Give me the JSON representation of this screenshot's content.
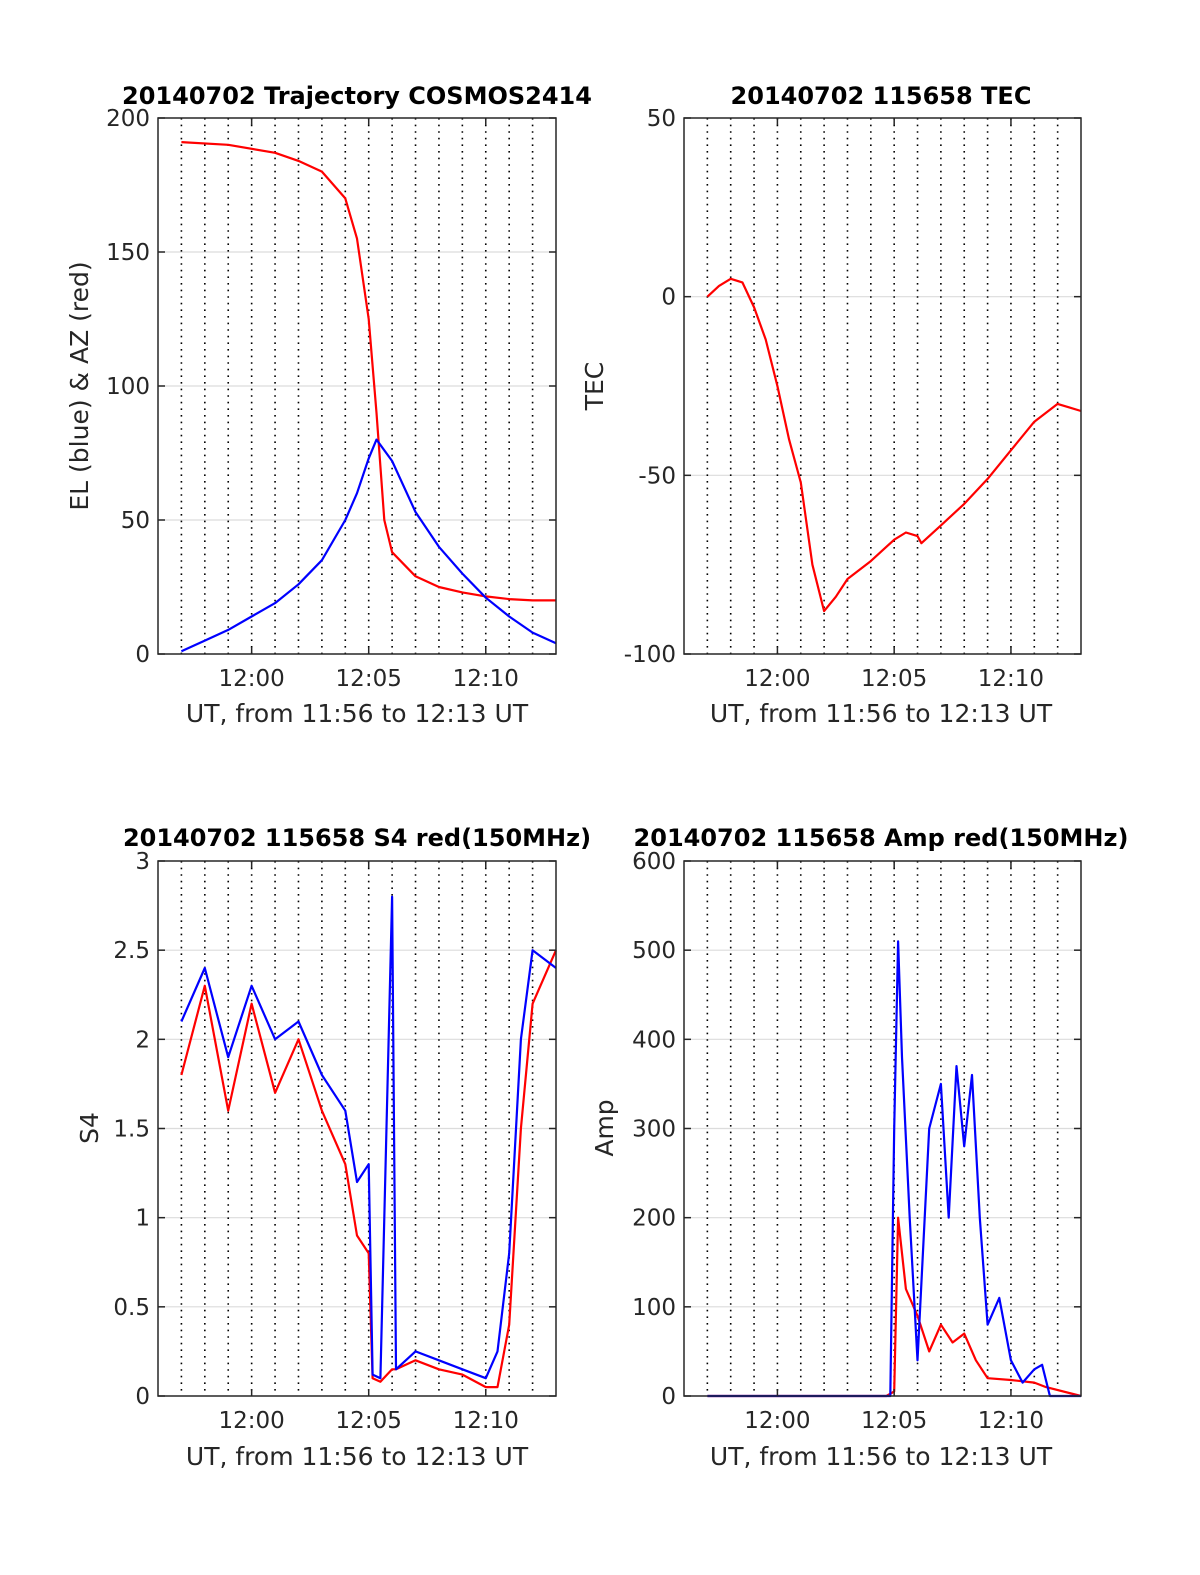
{
  "colors": {
    "red": "#ff0000",
    "blue": "#0000ff",
    "grid": "#dcdcdc",
    "vgrid": "#000000",
    "axis": "#262626"
  },
  "chart_data": [
    {
      "type": "line",
      "title": "20140702 Trajectory COSMOS2414",
      "xlabel": "UT, from 11:56 to 12:13 UT",
      "ylabel": "EL (blue) & AZ (red)",
      "xlim": [
        "11:56",
        "12:13"
      ],
      "ylim": [
        0,
        200
      ],
      "x_ticks": [
        "12:00",
        "12:05",
        "12:10"
      ],
      "y_ticks": [
        0,
        50,
        100,
        150,
        200
      ],
      "grid": "horizontal solid, vertical dotted every minute",
      "series": [
        {
          "color": "red",
          "x": [
            "11:57",
            "11:59",
            "12:01",
            "12:02",
            "12:03",
            "12:04",
            "12:04:30",
            "12:05",
            "12:05:20",
            "12:05:40",
            "12:06",
            "12:07",
            "12:08",
            "12:09",
            "12:10",
            "12:11",
            "12:12",
            "12:13"
          ],
          "y": [
            191,
            190,
            187,
            184,
            180,
            170,
            155,
            125,
            90,
            50,
            38,
            29,
            25,
            23,
            21.5,
            20.5,
            20,
            20
          ]
        },
        {
          "color": "blue",
          "x": [
            "11:57",
            "11:58",
            "11:59",
            "12:00",
            "12:01",
            "12:02",
            "12:03",
            "12:04",
            "12:04:30",
            "12:05",
            "12:05:20",
            "12:06",
            "12:07",
            "12:08",
            "12:09",
            "12:10",
            "12:11",
            "12:12",
            "12:13"
          ],
          "y": [
            1,
            5,
            9,
            14,
            19,
            26,
            35,
            50,
            60,
            73,
            80,
            72,
            53,
            40,
            30,
            21,
            14,
            8,
            4
          ]
        }
      ]
    },
    {
      "type": "line",
      "title": "20140702 115658 TEC",
      "xlabel": "UT, from 11:56 to 12:13 UT",
      "ylabel": "TEC",
      "xlim": [
        "11:56",
        "12:13"
      ],
      "ylim": [
        -100,
        50
      ],
      "x_ticks": [
        "12:00",
        "12:05",
        "12:10"
      ],
      "y_ticks": [
        -100,
        -50,
        0,
        50
      ],
      "series": [
        {
          "color": "red",
          "x": [
            "11:57",
            "11:57:30",
            "11:58",
            "11:58:30",
            "11:59",
            "11:59:30",
            "12:00",
            "12:00:30",
            "12:01",
            "12:01:30",
            "12:02",
            "12:02:30",
            "12:03",
            "12:04",
            "12:05",
            "12:05:30",
            "12:06",
            "12:06:10",
            "12:07",
            "12:08",
            "12:09",
            "12:10",
            "12:11",
            "12:12",
            "12:12:30",
            "12:13"
          ],
          "y": [
            0,
            3,
            5,
            4,
            -3,
            -12,
            -25,
            -40,
            -52,
            -75,
            -88,
            -84,
            -79,
            -74,
            -68,
            -66,
            -67,
            -69,
            -64,
            -58,
            -51,
            -43,
            -35,
            -30,
            -31,
            -32
          ]
        }
      ]
    },
    {
      "type": "line",
      "title": "20140702 115658 S4 red(150MHz)",
      "xlabel": "UT, from 11:56 to 12:13 UT",
      "ylabel": "S4",
      "xlim": [
        "11:56",
        "12:13"
      ],
      "ylim": [
        0,
        3
      ],
      "x_ticks": [
        "12:00",
        "12:05",
        "12:10"
      ],
      "y_ticks": [
        0,
        0.5,
        1,
        1.5,
        2,
        2.5,
        3
      ],
      "series": [
        {
          "color": "red",
          "x": [
            "11:57",
            "11:58",
            "11:59",
            "12:00",
            "12:01",
            "12:02",
            "12:03",
            "12:04",
            "12:04:30",
            "12:05",
            "12:05:10",
            "12:05:30",
            "12:06",
            "12:06:10",
            "12:07",
            "12:08",
            "12:09",
            "12:10",
            "12:10:30",
            "12:11",
            "12:11:30",
            "12:12",
            "12:13"
          ],
          "y": [
            1.8,
            2.3,
            1.6,
            2.2,
            1.7,
            2.0,
            1.6,
            1.3,
            0.9,
            0.8,
            0.1,
            0.08,
            0.15,
            0.15,
            0.2,
            0.15,
            0.12,
            0.05,
            0.05,
            0.4,
            1.5,
            2.2,
            2.5
          ]
        },
        {
          "color": "blue",
          "x": [
            "11:57",
            "11:58",
            "11:59",
            "12:00",
            "12:01",
            "12:02",
            "12:03",
            "12:04",
            "12:04:30",
            "12:05",
            "12:05:10",
            "12:05:30",
            "12:06",
            "12:06:10",
            "12:07",
            "12:08",
            "12:09",
            "12:10",
            "12:10:30",
            "12:11",
            "12:11:30",
            "12:12",
            "12:13"
          ],
          "y": [
            2.1,
            2.4,
            1.9,
            2.3,
            2.0,
            2.1,
            1.8,
            1.6,
            1.2,
            1.3,
            0.12,
            0.1,
            2.8,
            0.15,
            0.25,
            0.2,
            0.15,
            0.1,
            0.25,
            0.8,
            2.0,
            2.5,
            2.4
          ]
        }
      ]
    },
    {
      "type": "line",
      "title": "20140702 115658 Amp red(150MHz)",
      "xlabel": "UT, from 11:56 to 12:13 UT",
      "ylabel": "Amp",
      "xlim": [
        "11:56",
        "12:13"
      ],
      "ylim": [
        0,
        600
      ],
      "x_ticks": [
        "12:00",
        "12:05",
        "12:10"
      ],
      "y_ticks": [
        0,
        100,
        200,
        300,
        400,
        500,
        600
      ],
      "series": [
        {
          "color": "red",
          "x": [
            "11:57",
            "12:00",
            "12:04:40",
            "12:05",
            "12:05:10",
            "12:05:30",
            "12:06",
            "12:06:30",
            "12:07",
            "12:07:30",
            "12:08",
            "12:08:30",
            "12:09",
            "12:10",
            "12:11",
            "12:11:30",
            "12:13"
          ],
          "y": [
            0,
            0,
            0,
            5,
            200,
            120,
            90,
            50,
            80,
            60,
            70,
            40,
            20,
            18,
            15,
            10,
            0
          ]
        },
        {
          "color": "blue",
          "x": [
            "11:57",
            "12:00",
            "12:04:50",
            "12:05",
            "12:05:10",
            "12:05:20",
            "12:05:40",
            "12:06",
            "12:06:30",
            "12:07",
            "12:07:20",
            "12:07:40",
            "12:08",
            "12:08:20",
            "12:08:40",
            "12:09",
            "12:09:30",
            "12:10",
            "12:10:30",
            "12:11",
            "12:11:20",
            "12:11:40",
            "12:13"
          ],
          "y": [
            0,
            0,
            0,
            300,
            510,
            380,
            200,
            40,
            300,
            350,
            200,
            370,
            280,
            360,
            200,
            80,
            110,
            40,
            15,
            30,
            35,
            0,
            0
          ]
        }
      ]
    }
  ]
}
